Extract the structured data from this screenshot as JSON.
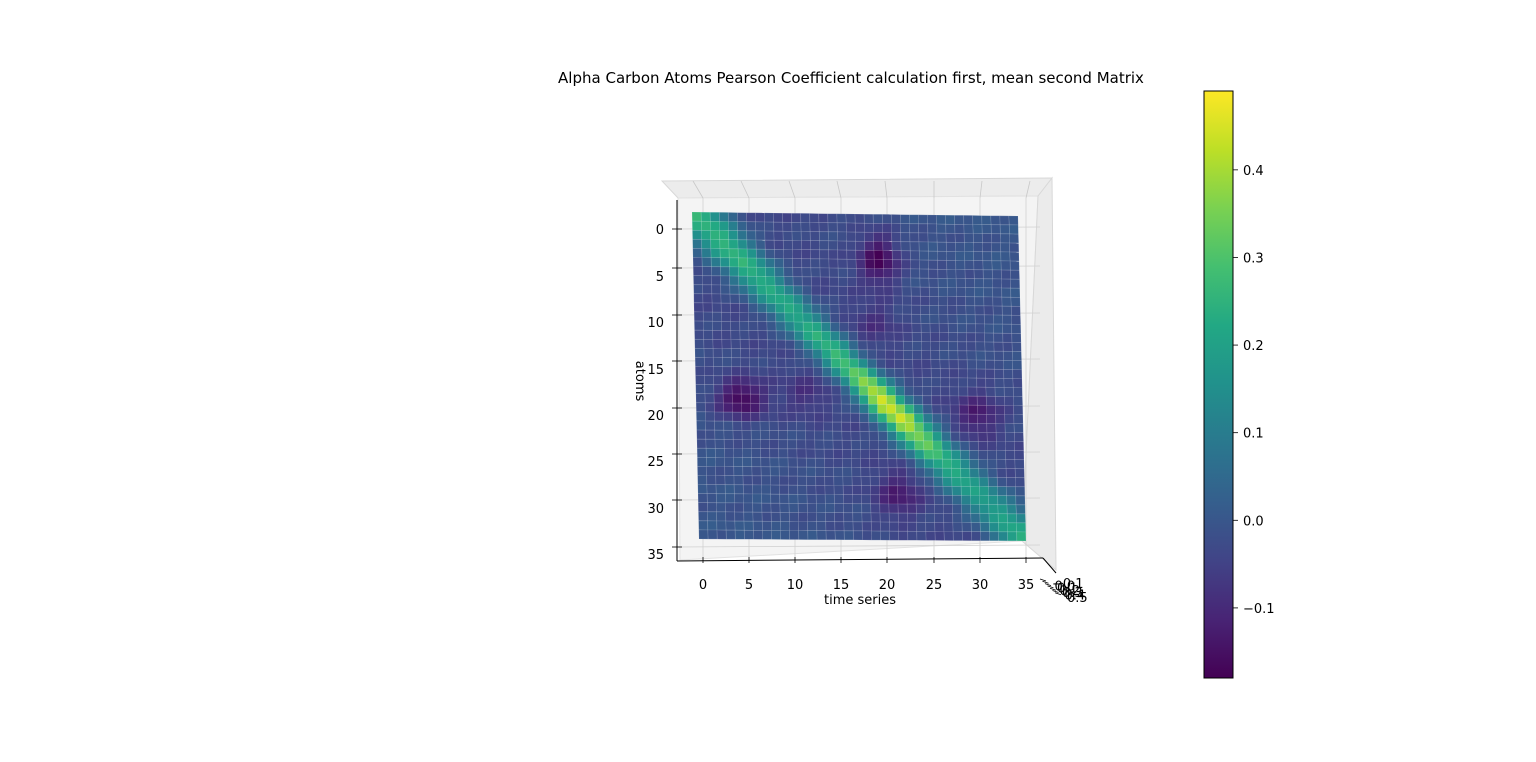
{
  "chart_data": {
    "type": "heatmap",
    "subtype": "3d-surface",
    "title": "Alpha Carbon Atoms Pearson Coefficient calculation first, mean second Matrix",
    "xlabel": "time series",
    "ylabel": "atoms",
    "zlabel": "",
    "x_ticks": [
      "0",
      "5",
      "10",
      "15",
      "20",
      "25",
      "30",
      "35"
    ],
    "y_ticks": [
      "0",
      "5",
      "10",
      "15",
      "20",
      "25",
      "30",
      "35"
    ],
    "z_ticks": [
      "−0.1",
      "0.0",
      "0.1",
      "0.2",
      "0.3",
      "0.4",
      "0.5"
    ],
    "colorbar_ticks": [
      "0.4",
      "0.3",
      "0.2",
      "0.1",
      "0.0",
      "−0.1"
    ],
    "colorbar_tick_values": [
      0.4,
      0.3,
      0.2,
      0.1,
      0.0,
      -0.1
    ],
    "colormap": "viridis",
    "grid_size": 37,
    "vmin": -0.18,
    "vmax": 0.49,
    "xlim": [
      0,
      36
    ],
    "ylim": [
      0,
      36
    ],
    "diagonal_values": [
      0.27,
      0.26,
      0.26,
      0.27,
      0.27,
      0.27,
      0.26,
      0.26,
      0.25,
      0.24,
      0.24,
      0.24,
      0.24,
      0.26,
      0.26,
      0.28,
      0.31,
      0.32,
      0.36,
      0.41,
      0.47,
      0.49,
      0.46,
      0.48,
      0.41,
      0.39,
      0.33,
      0.28,
      0.26,
      0.24,
      0.22,
      0.2,
      0.2,
      0.21,
      0.21,
      0.23,
      0.25
    ],
    "low_regions": [
      {
        "label": "atoms 3-8 x time 19-22",
        "value": -0.18
      },
      {
        "label": "atoms 18-23 x time 3-7",
        "value": -0.18
      },
      {
        "label": "atoms 29-33 x time 20-24",
        "value": -0.12
      }
    ]
  }
}
